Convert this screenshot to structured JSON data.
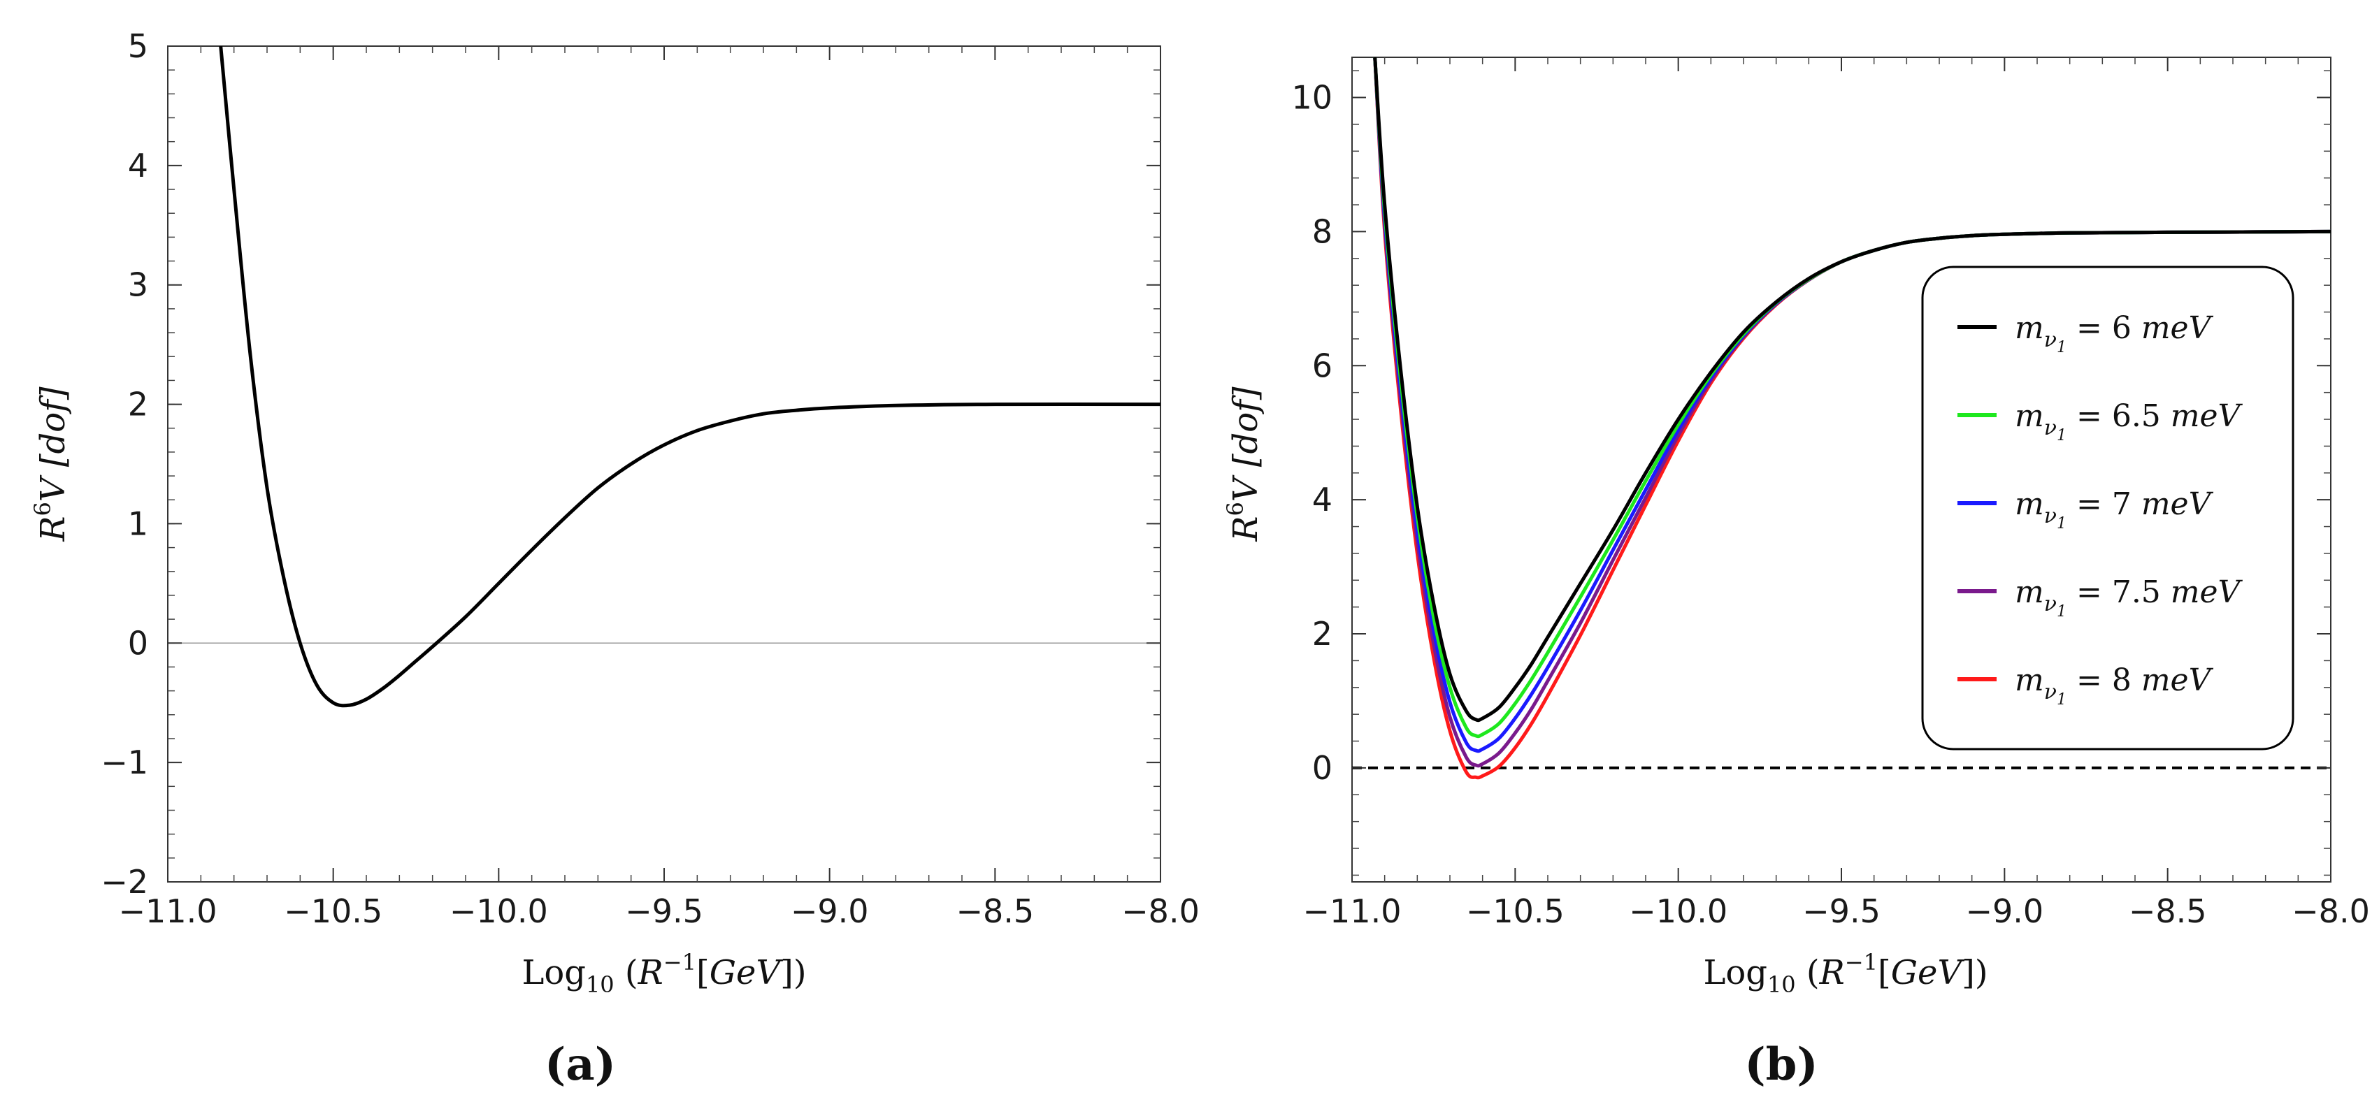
{
  "chart_data": [
    {
      "type": "line",
      "panel_label": "(a)",
      "xlabel": "Log10(R^-1[GeV])",
      "ylabel": "R^6 V [dof]",
      "xlim": [
        -11.0,
        -8.0
      ],
      "ylim": [
        -2,
        5
      ],
      "xticks": [
        "−11.0",
        "−10.5",
        "−10.0",
        "−9.5",
        "−9.0",
        "−8.5",
        "−8.0"
      ],
      "xtick_values": [
        -11.0,
        -10.5,
        -10.0,
        -9.5,
        -9.0,
        -8.5,
        -8.0
      ],
      "yticks": [
        "−2",
        "−1",
        "0",
        "1",
        "2",
        "3",
        "4",
        "5"
      ],
      "ytick_values": [
        -2,
        -1,
        0,
        1,
        2,
        3,
        4,
        5
      ],
      "zero_line": {
        "value": 0,
        "style": "thin gray solid"
      },
      "series": [
        {
          "name": "R^6 V",
          "color": "#000000",
          "x": [
            -10.84,
            -10.8,
            -10.75,
            -10.7,
            -10.65,
            -10.6,
            -10.55,
            -10.5,
            -10.45,
            -10.4,
            -10.35,
            -10.3,
            -10.25,
            -10.2,
            -10.1,
            -10.0,
            -9.9,
            -9.8,
            -9.7,
            -9.6,
            -9.5,
            -9.4,
            -9.3,
            -9.2,
            -9.1,
            -9.0,
            -8.8,
            -8.5,
            -8.0
          ],
          "y": [
            5.0,
            3.8,
            2.4,
            1.3,
            0.55,
            0.0,
            -0.35,
            -0.5,
            -0.52,
            -0.47,
            -0.38,
            -0.27,
            -0.15,
            -0.03,
            0.22,
            0.5,
            0.78,
            1.05,
            1.3,
            1.5,
            1.66,
            1.78,
            1.86,
            1.92,
            1.95,
            1.97,
            1.99,
            2.0,
            2.0
          ]
        }
      ]
    },
    {
      "type": "line",
      "panel_label": "(b)",
      "xlabel": "Log10(R^-1[GeV])",
      "ylabel": "R^6 V [dof]",
      "xlim": [
        -11.0,
        -8.0
      ],
      "ylim": [
        -1.7,
        10.6
      ],
      "xticks": [
        "−11.0",
        "−10.5",
        "−10.0",
        "−9.5",
        "−9.0",
        "−8.5",
        "−8.0"
      ],
      "xtick_values": [
        -11.0,
        -10.5,
        -10.0,
        -9.5,
        -9.0,
        -8.5,
        -8.0
      ],
      "yticks": [
        "0",
        "2",
        "4",
        "6",
        "8",
        "10"
      ],
      "ytick_values": [
        0,
        2,
        4,
        6,
        8,
        10
      ],
      "zero_line": {
        "value": 0,
        "style": "black dashed"
      },
      "legend_position": "right",
      "x": [
        -10.93,
        -10.9,
        -10.85,
        -10.8,
        -10.75,
        -10.7,
        -10.65,
        -10.62,
        -10.6,
        -10.55,
        -10.5,
        -10.45,
        -10.4,
        -10.3,
        -10.2,
        -10.1,
        -10.0,
        -9.9,
        -9.8,
        -9.7,
        -9.6,
        -9.5,
        -9.4,
        -9.3,
        -9.2,
        -9.1,
        -9.0,
        -8.8,
        -8.5,
        -8.0
      ],
      "series": [
        {
          "name": "m_ν1 = 6 meV",
          "mass_value": "6",
          "color": "#000000",
          "y": [
            10.6,
            8.4,
            5.9,
            3.9,
            2.45,
            1.4,
            0.85,
            0.72,
            0.74,
            0.9,
            1.2,
            1.55,
            1.95,
            2.75,
            3.55,
            4.4,
            5.2,
            5.9,
            6.5,
            6.95,
            7.3,
            7.55,
            7.72,
            7.84,
            7.9,
            7.94,
            7.96,
            7.98,
            7.99,
            8.0
          ]
        },
        {
          "name": "m_ν1 = 6.5 meV",
          "mass_value": "6.5",
          "color": "#1ee81e",
          "y": [
            10.6,
            8.3,
            5.75,
            3.75,
            2.25,
            1.2,
            0.6,
            0.48,
            0.5,
            0.66,
            0.96,
            1.32,
            1.72,
            2.55,
            3.4,
            4.28,
            5.12,
            5.86,
            6.47,
            6.94,
            7.29,
            7.55,
            7.72,
            7.84,
            7.9,
            7.94,
            7.96,
            7.98,
            7.99,
            8.0
          ]
        },
        {
          "name": "m_ν1 = 7 meV",
          "mass_value": "7",
          "color": "#1a1aff",
          "y": [
            10.6,
            8.2,
            5.6,
            3.55,
            2.05,
            0.98,
            0.38,
            0.26,
            0.28,
            0.44,
            0.74,
            1.1,
            1.5,
            2.35,
            3.25,
            4.15,
            5.04,
            5.82,
            6.45,
            6.93,
            7.29,
            7.55,
            7.72,
            7.84,
            7.9,
            7.94,
            7.96,
            7.98,
            7.99,
            8.0
          ]
        },
        {
          "name": "m_ν1 = 7.5 meV",
          "mass_value": "7.5",
          "color": "#7a1a8c",
          "y": [
            10.6,
            8.1,
            5.45,
            3.38,
            1.85,
            0.76,
            0.16,
            0.04,
            0.06,
            0.22,
            0.52,
            0.88,
            1.3,
            2.16,
            3.1,
            4.03,
            4.96,
            5.78,
            6.43,
            6.92,
            7.28,
            7.55,
            7.72,
            7.84,
            7.9,
            7.94,
            7.96,
            7.98,
            7.99,
            8.0
          ]
        },
        {
          "name": "m_ν1 = 8 meV",
          "mass_value": "8",
          "color": "#ff1a1a",
          "y": [
            10.6,
            8.0,
            5.3,
            3.2,
            1.65,
            0.55,
            -0.06,
            -0.14,
            -0.12,
            0.02,
            0.3,
            0.66,
            1.08,
            1.98,
            2.95,
            3.92,
            4.88,
            5.74,
            6.41,
            6.91,
            7.28,
            7.55,
            7.72,
            7.84,
            7.9,
            7.94,
            7.96,
            7.98,
            7.99,
            8.0
          ]
        }
      ]
    }
  ]
}
